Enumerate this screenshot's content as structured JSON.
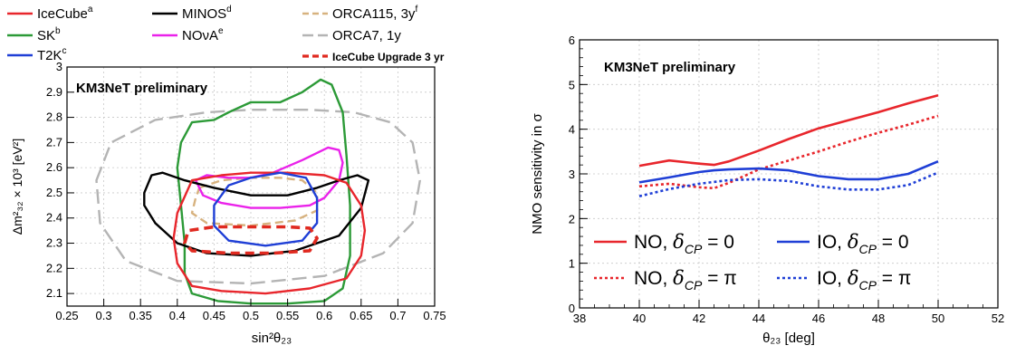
{
  "chart_data": [
    {
      "type": "line",
      "subtype": "contour",
      "annotation": "KM3NeT preliminary",
      "xlabel": "sin²θ₂₃",
      "ylabel": "Δm²₃₂ × 10³ [eV²]",
      "xlim": [
        0.25,
        0.75
      ],
      "ylim": [
        2.05,
        3.0
      ],
      "x_ticks": [
        "0.25",
        "0.3",
        "0.35",
        "0.4",
        "0.45",
        "0.5",
        "0.55",
        "0.6",
        "0.65",
        "0.7",
        "0.75"
      ],
      "y_ticks": [
        "2.1",
        "2.2",
        "2.3",
        "2.4",
        "2.5",
        "2.6",
        "2.7",
        "2.8",
        "2.9",
        "3"
      ],
      "grid": true,
      "legend_position": "top (above plot)",
      "series": [
        {
          "name": "IceCube",
          "sup": "a",
          "color": "#e8262c",
          "style": "solid",
          "points": [
            [
              0.4,
              2.42
            ],
            [
              0.42,
              2.55
            ],
            [
              0.46,
              2.57
            ],
            [
              0.5,
              2.58
            ],
            [
              0.55,
              2.58
            ],
            [
              0.6,
              2.57
            ],
            [
              0.63,
              2.54
            ],
            [
              0.65,
              2.45
            ],
            [
              0.655,
              2.35
            ],
            [
              0.65,
              2.25
            ],
            [
              0.63,
              2.16
            ],
            [
              0.58,
              2.12
            ],
            [
              0.52,
              2.1
            ],
            [
              0.46,
              2.11
            ],
            [
              0.42,
              2.13
            ],
            [
              0.4,
              2.22
            ],
            [
              0.395,
              2.32
            ],
            [
              0.4,
              2.42
            ]
          ]
        },
        {
          "name": "SK",
          "sup": "b",
          "color": "#2c9a37",
          "style": "solid",
          "points": [
            [
              0.4,
              2.6
            ],
            [
              0.405,
              2.7
            ],
            [
              0.42,
              2.78
            ],
            [
              0.45,
              2.79
            ],
            [
              0.47,
              2.82
            ],
            [
              0.5,
              2.86
            ],
            [
              0.54,
              2.86
            ],
            [
              0.57,
              2.9
            ],
            [
              0.595,
              2.95
            ],
            [
              0.61,
              2.93
            ],
            [
              0.625,
              2.82
            ],
            [
              0.63,
              2.65
            ],
            [
              0.635,
              2.45
            ],
            [
              0.635,
              2.25
            ],
            [
              0.625,
              2.12
            ],
            [
              0.6,
              2.07
            ],
            [
              0.55,
              2.06
            ],
            [
              0.5,
              2.06
            ],
            [
              0.455,
              2.07
            ],
            [
              0.42,
              2.1
            ],
            [
              0.41,
              2.18
            ],
            [
              0.41,
              2.3
            ],
            [
              0.405,
              2.45
            ],
            [
              0.4,
              2.6
            ]
          ]
        },
        {
          "name": "T2K",
          "sup": "c",
          "color": "#1f3fd6",
          "style": "solid",
          "points": [
            [
              0.45,
              2.45
            ],
            [
              0.47,
              2.53
            ],
            [
              0.5,
              2.56
            ],
            [
              0.54,
              2.58
            ],
            [
              0.575,
              2.56
            ],
            [
              0.59,
              2.48
            ],
            [
              0.59,
              2.38
            ],
            [
              0.57,
              2.31
            ],
            [
              0.52,
              2.29
            ],
            [
              0.47,
              2.31
            ],
            [
              0.45,
              2.37
            ],
            [
              0.45,
              2.45
            ]
          ]
        },
        {
          "name": "MINOS",
          "sup": "d",
          "color": "#000000",
          "style": "solid",
          "points": [
            [
              0.355,
              2.5
            ],
            [
              0.365,
              2.57
            ],
            [
              0.38,
              2.58
            ],
            [
              0.41,
              2.55
            ],
            [
              0.45,
              2.52
            ],
            [
              0.5,
              2.49
            ],
            [
              0.55,
              2.49
            ],
            [
              0.59,
              2.52
            ],
            [
              0.62,
              2.55
            ],
            [
              0.645,
              2.57
            ],
            [
              0.66,
              2.55
            ],
            [
              0.65,
              2.44
            ],
            [
              0.62,
              2.33
            ],
            [
              0.56,
              2.27
            ],
            [
              0.5,
              2.25
            ],
            [
              0.44,
              2.26
            ],
            [
              0.4,
              2.3
            ],
            [
              0.37,
              2.38
            ],
            [
              0.355,
              2.45
            ],
            [
              0.355,
              2.5
            ]
          ]
        },
        {
          "name": "NOνA",
          "sup": "e",
          "color": "#ea22ea",
          "style": "solid",
          "points": [
            [
              0.425,
              2.55
            ],
            [
              0.44,
              2.57
            ],
            [
              0.47,
              2.56
            ],
            [
              0.5,
              2.56
            ],
            [
              0.53,
              2.58
            ],
            [
              0.57,
              2.63
            ],
            [
              0.605,
              2.68
            ],
            [
              0.62,
              2.67
            ],
            [
              0.625,
              2.62
            ],
            [
              0.62,
              2.55
            ],
            [
              0.6,
              2.48
            ],
            [
              0.58,
              2.45
            ],
            [
              0.54,
              2.44
            ],
            [
              0.5,
              2.44
            ],
            [
              0.46,
              2.46
            ],
            [
              0.435,
              2.49
            ],
            [
              0.425,
              2.55
            ]
          ]
        },
        {
          "name": "ORCA115, 3y",
          "sup": "f",
          "color": "#d7b27f",
          "style": "dashed",
          "points": [
            [
              0.43,
              2.52
            ],
            [
              0.46,
              2.55
            ],
            [
              0.5,
              2.56
            ],
            [
              0.54,
              2.56
            ],
            [
              0.57,
              2.55
            ],
            [
              0.59,
              2.5
            ],
            [
              0.59,
              2.43
            ],
            [
              0.56,
              2.39
            ],
            [
              0.5,
              2.37
            ],
            [
              0.44,
              2.38
            ],
            [
              0.42,
              2.42
            ],
            [
              0.425,
              2.48
            ],
            [
              0.43,
              2.52
            ]
          ]
        },
        {
          "name": "ORCA7, 1y",
          "sup": "",
          "color": "#b4b4b4",
          "style": "longdash",
          "points": [
            [
              0.29,
              2.55
            ],
            [
              0.31,
              2.7
            ],
            [
              0.37,
              2.79
            ],
            [
              0.44,
              2.82
            ],
            [
              0.5,
              2.83
            ],
            [
              0.58,
              2.83
            ],
            [
              0.64,
              2.82
            ],
            [
              0.69,
              2.78
            ],
            [
              0.72,
              2.7
            ],
            [
              0.73,
              2.55
            ],
            [
              0.72,
              2.38
            ],
            [
              0.68,
              2.26
            ],
            [
              0.6,
              2.17
            ],
            [
              0.5,
              2.14
            ],
            [
              0.4,
              2.15
            ],
            [
              0.33,
              2.23
            ],
            [
              0.295,
              2.38
            ],
            [
              0.29,
              2.55
            ]
          ]
        },
        {
          "name": "IceCube Upgrade 3 yr",
          "sup": "",
          "color": "#e02a20",
          "style": "thickdash",
          "points": [
            [
              0.41,
              2.3
            ],
            [
              0.415,
              2.35
            ],
            [
              0.45,
              2.365
            ],
            [
              0.5,
              2.365
            ],
            [
              0.55,
              2.365
            ],
            [
              0.58,
              2.36
            ],
            [
              0.59,
              2.32
            ],
            [
              0.58,
              2.27
            ],
            [
              0.53,
              2.26
            ],
            [
              0.47,
              2.26
            ],
            [
              0.42,
              2.27
            ],
            [
              0.41,
              2.3
            ]
          ]
        }
      ]
    },
    {
      "type": "line",
      "annotation": "KM3NeT preliminary",
      "xlabel": "θ₂₃ [deg]",
      "ylabel": "NMO sensitivity in σ",
      "xlim": [
        38,
        52
      ],
      "ylim": [
        0,
        6
      ],
      "x_ticks": [
        "38",
        "40",
        "42",
        "44",
        "46",
        "48",
        "50",
        "52"
      ],
      "y_ticks": [
        "0",
        "1",
        "2",
        "3",
        "4",
        "5",
        "6"
      ],
      "grid": true,
      "legend_position": "bottom",
      "x": [
        40,
        41,
        42,
        42.5,
        43,
        44,
        45,
        46,
        47,
        48,
        49,
        50
      ],
      "series": [
        {
          "name": "NO, δCP = 0",
          "label_pre": "NO,",
          "label_post": "= 0",
          "color": "#e8262c",
          "style": "solid",
          "values": [
            3.18,
            3.3,
            3.23,
            3.2,
            3.28,
            3.52,
            3.78,
            4.02,
            4.2,
            4.38,
            4.58,
            4.76
          ]
        },
        {
          "name": "NO, δCP = π",
          "label_pre": "NO,",
          "label_post": "= π",
          "color": "#e8262c",
          "style": "dotted",
          "values": [
            2.72,
            2.78,
            2.7,
            2.68,
            2.8,
            3.1,
            3.3,
            3.5,
            3.72,
            3.92,
            4.1,
            4.3
          ]
        },
        {
          "name": "IO, δCP = 0",
          "label_pre": "IO,",
          "label_post": "= 0",
          "color": "#1f3fd6",
          "style": "solid",
          "values": [
            2.81,
            2.92,
            3.04,
            3.08,
            3.1,
            3.12,
            3.08,
            2.95,
            2.88,
            2.88,
            3.0,
            3.28
          ]
        },
        {
          "name": "IO, δCP = π",
          "label_pre": "IO,",
          "label_post": "= π",
          "color": "#1f3fd6",
          "style": "dotted",
          "values": [
            2.5,
            2.66,
            2.78,
            2.82,
            2.86,
            2.88,
            2.84,
            2.72,
            2.65,
            2.65,
            2.75,
            3.03
          ]
        }
      ]
    }
  ]
}
